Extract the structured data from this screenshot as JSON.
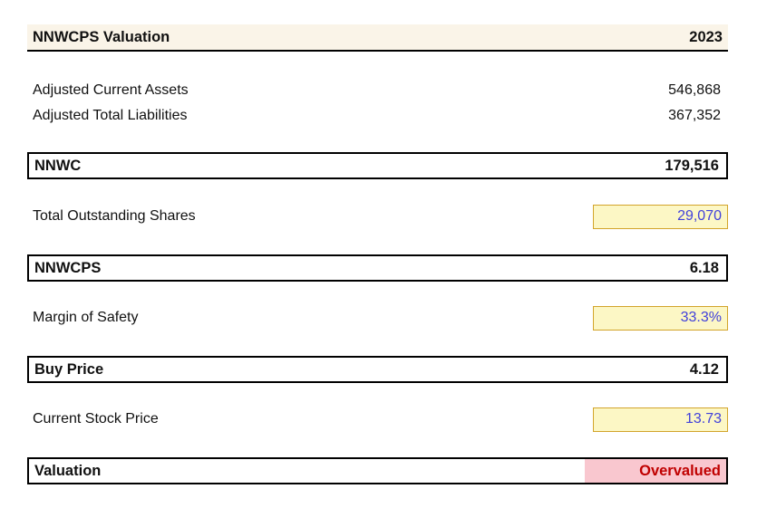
{
  "report": {
    "title": "NNWCPS Valuation",
    "year": "2023",
    "rows": [
      {
        "type": "plain",
        "label": "Adjusted Current Assets",
        "value": "546,868"
      },
      {
        "type": "plain",
        "label": "Adjusted Total Liabilities",
        "value": "367,352"
      },
      {
        "type": "total",
        "label": "NNWC",
        "value": "179,516"
      },
      {
        "type": "input",
        "label": "Total Outstanding Shares",
        "value": "29,070"
      },
      {
        "type": "total",
        "label": "NNWCPS",
        "value": "6.18"
      },
      {
        "type": "input",
        "label": "Margin of Safety",
        "value": "33.3%"
      },
      {
        "type": "total",
        "label": "Buy Price",
        "value": "4.12"
      },
      {
        "type": "input",
        "label": "Current Stock Price",
        "value": "13.73"
      },
      {
        "type": "status",
        "label": "Valuation",
        "value": "Overvalued"
      }
    ],
    "colors": {
      "header_band": "#FAF4E8",
      "input_cell_bg": "#FCF7C5",
      "input_cell_border": "#D2A42A",
      "input_text": "#4141DB",
      "status_bad_bg": "#F9C7CF",
      "status_bad_text": "#C00000",
      "border": "#000000"
    }
  }
}
